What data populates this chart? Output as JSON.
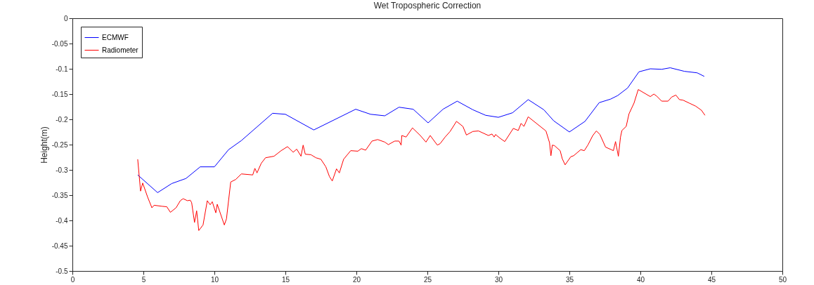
{
  "chart_data": {
    "type": "line",
    "title": "Wet Tropospheric Correction",
    "ylabel": "Height(m)",
    "xlim": [
      0,
      50
    ],
    "xticks": [
      0,
      5,
      10,
      15,
      20,
      25,
      30,
      35,
      40,
      45,
      50
    ],
    "ylim": [
      -0.5,
      0
    ],
    "yticks": [
      -0.5,
      -0.45,
      -0.4,
      -0.35,
      -0.3,
      -0.25,
      -0.2,
      -0.15,
      -0.1,
      -0.05,
      0
    ],
    "grid": false,
    "legend": "top left",
    "line_style": "solid",
    "marker": "none",
    "series": [
      {
        "name": "ECMWF",
        "color": "#0000ff",
        "x": [
          4.6,
          6.0,
          7.0,
          8.0,
          9.0,
          10.0,
          11.0,
          11.9,
          14.1,
          15.0,
          17.0,
          19.95,
          21.0,
          22.0,
          23.0,
          24.0,
          25.05,
          26.1,
          27.1,
          28.2,
          29.1,
          30.0,
          31.0,
          32.1,
          33.2,
          33.9,
          35.0,
          36.1,
          37.1,
          37.9,
          38.4,
          39.1,
          39.9,
          40.7,
          41.5,
          42.1,
          43.1,
          44.0,
          44.5
        ],
        "values": [
          -0.31,
          -0.345,
          -0.327,
          -0.317,
          -0.294,
          -0.294,
          -0.26,
          -0.242,
          -0.188,
          -0.19,
          -0.221,
          -0.18,
          -0.19,
          -0.193,
          -0.176,
          -0.18,
          -0.207,
          -0.18,
          -0.164,
          -0.181,
          -0.192,
          -0.196,
          -0.187,
          -0.161,
          -0.181,
          -0.203,
          -0.225,
          -0.204,
          -0.167,
          -0.16,
          -0.153,
          -0.138,
          -0.106,
          -0.1,
          -0.101,
          -0.098,
          -0.105,
          -0.108,
          -0.115
        ]
      },
      {
        "name": "Radiometer",
        "color": "#ff0000",
        "x": [
          4.6,
          4.8,
          4.95,
          5.3,
          5.6,
          5.75,
          6.3,
          6.65,
          6.9,
          7.3,
          7.6,
          7.8,
          8.1,
          8.3,
          8.4,
          8.6,
          8.75,
          8.9,
          9.2,
          9.5,
          9.7,
          9.85,
          10.1,
          10.2,
          10.7,
          10.85,
          11.15,
          11.5,
          11.9,
          12.7,
          12.85,
          13.0,
          13.3,
          13.6,
          14.2,
          14.7,
          15.15,
          15.55,
          15.8,
          16.1,
          16.25,
          16.4,
          16.8,
          17.15,
          17.5,
          17.85,
          18.1,
          18.3,
          18.6,
          18.8,
          19.1,
          19.6,
          20.1,
          20.35,
          20.65,
          21.1,
          21.5,
          22.0,
          22.25,
          22.7,
          23.0,
          23.15,
          23.2,
          23.5,
          23.95,
          24.5,
          24.9,
          25.2,
          25.7,
          25.9,
          26.25,
          26.6,
          27.05,
          27.5,
          27.75,
          28.2,
          28.6,
          29.3,
          29.55,
          29.7,
          29.8,
          30.1,
          30.45,
          31.05,
          31.4,
          31.6,
          31.8,
          32.1,
          33.35,
          33.6,
          33.7,
          33.8,
          33.95,
          34.35,
          34.5,
          34.7,
          35.1,
          35.3,
          35.8,
          36.05,
          36.3,
          36.65,
          36.9,
          37.15,
          37.55,
          37.95,
          38.1,
          38.25,
          38.45,
          38.6,
          38.7,
          39.0,
          39.2,
          39.55,
          39.85,
          40.7,
          40.95,
          41.15,
          41.5,
          41.95,
          42.2,
          42.5,
          42.75,
          43.0,
          43.45,
          43.9,
          44.3,
          44.55
        ],
        "values": [
          -0.279,
          -0.342,
          -0.326,
          -0.354,
          -0.375,
          -0.37,
          -0.372,
          -0.373,
          -0.384,
          -0.375,
          -0.361,
          -0.357,
          -0.361,
          -0.36,
          -0.365,
          -0.404,
          -0.381,
          -0.42,
          -0.409,
          -0.361,
          -0.369,
          -0.363,
          -0.385,
          -0.368,
          -0.409,
          -0.397,
          -0.324,
          -0.319,
          -0.308,
          -0.31,
          -0.297,
          -0.306,
          -0.287,
          -0.276,
          -0.273,
          -0.262,
          -0.254,
          -0.265,
          -0.259,
          -0.273,
          -0.251,
          -0.269,
          -0.27,
          -0.276,
          -0.279,
          -0.294,
          -0.313,
          -0.322,
          -0.298,
          -0.306,
          -0.279,
          -0.262,
          -0.263,
          -0.258,
          -0.261,
          -0.243,
          -0.24,
          -0.245,
          -0.25,
          -0.243,
          -0.243,
          -0.251,
          -0.232,
          -0.235,
          -0.217,
          -0.232,
          -0.245,
          -0.232,
          -0.251,
          -0.248,
          -0.235,
          -0.224,
          -0.204,
          -0.214,
          -0.231,
          -0.224,
          -0.223,
          -0.232,
          -0.229,
          -0.235,
          -0.23,
          -0.237,
          -0.244,
          -0.218,
          -0.222,
          -0.208,
          -0.214,
          -0.195,
          -0.223,
          -0.246,
          -0.272,
          -0.251,
          -0.252,
          -0.262,
          -0.278,
          -0.29,
          -0.274,
          -0.272,
          -0.26,
          -0.262,
          -0.251,
          -0.232,
          -0.223,
          -0.23,
          -0.255,
          -0.26,
          -0.262,
          -0.244,
          -0.273,
          -0.235,
          -0.222,
          -0.214,
          -0.189,
          -0.168,
          -0.141,
          -0.155,
          -0.15,
          -0.154,
          -0.164,
          -0.164,
          -0.156,
          -0.152,
          -0.161,
          -0.162,
          -0.168,
          -0.174,
          -0.182,
          -0.192
        ]
      }
    ]
  }
}
